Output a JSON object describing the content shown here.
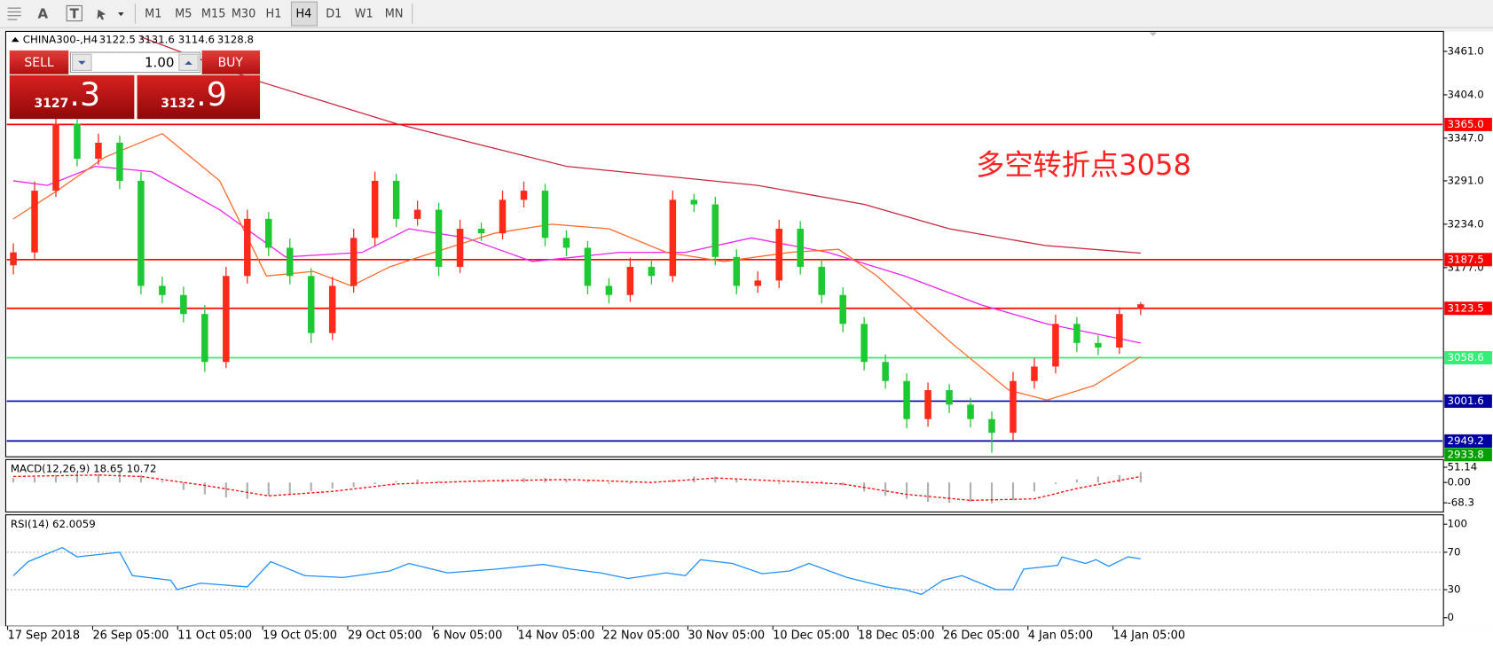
{
  "toolbar": {
    "text_tools": [
      "A",
      "T"
    ],
    "timeframes": [
      "M1",
      "M5",
      "M15",
      "M30",
      "H1",
      "H4",
      "D1",
      "W1",
      "MN"
    ],
    "active": "H4"
  },
  "trade_panel": {
    "sell_label": "SELL",
    "lot": "1.00",
    "buy_label": "BUY",
    "sell_price_main": "3127",
    "sell_price_frac": ".3",
    "buy_price_main": "3132",
    "buy_price_frac": ".9"
  },
  "chart_data": {
    "type": "candlestick",
    "title": "CHINA300-,H4",
    "up_color": "#ff2a1a",
    "down_color": "#1ec832",
    "open": [
      3180,
      3197,
      3278,
      3366,
      3320,
      3341,
      3291,
      3153,
      3141,
      3116,
      3053,
      3166,
      3241,
      3203,
      3166,
      3091,
      3153,
      3216,
      3291,
      3241,
      3253,
      3178,
      3228,
      3222,
      3266,
      3278,
      3216,
      3203,
      3153,
      3141,
      3178,
      3166,
      3266,
      3260,
      3191,
      3153,
      3160,
      3228,
      3178,
      3141,
      3103,
      3053,
      3028,
      2978,
      3016,
      2997,
      2978,
      2960,
      3028,
      3047,
      3103,
      3078,
      3072,
      3122.5
    ],
    "high": [
      3209,
      3290,
      3378,
      3372,
      3353,
      3350,
      3303,
      3165,
      3152,
      3128,
      3178,
      3253,
      3250,
      3215,
      3176,
      3165,
      3228,
      3303,
      3300,
      3265,
      3262,
      3240,
      3236,
      3278,
      3290,
      3287,
      3226,
      3212,
      3163,
      3190,
      3188,
      3278,
      3274,
      3270,
      3201,
      3172,
      3240,
      3238,
      3188,
      3151,
      3112,
      3063,
      3038,
      3026,
      3024,
      3006,
      2988,
      3040,
      3058,
      3115,
      3112,
      3088,
      3125,
      3131.6
    ],
    "low": [
      3168,
      3188,
      3270,
      3310,
      3312,
      3280,
      3142,
      3130,
      3105,
      3040,
      3045,
      3156,
      3192,
      3155,
      3078,
      3082,
      3144,
      3206,
      3230,
      3232,
      3166,
      3170,
      3212,
      3214,
      3256,
      3205,
      3192,
      3142,
      3130,
      3132,
      3155,
      3158,
      3250,
      3180,
      3142,
      3144,
      3150,
      3168,
      3130,
      3092,
      3042,
      3018,
      2966,
      2968,
      2986,
      2967,
      2933.8,
      2950,
      3018,
      3038,
      3066,
      3062,
      3064,
      3114.6
    ],
    "close": [
      3197,
      3278,
      3366,
      3320,
      3341,
      3291,
      3153,
      3141,
      3116,
      3053,
      3166,
      3241,
      3203,
      3166,
      3091,
      3153,
      3216,
      3291,
      3241,
      3253,
      3178,
      3228,
      3222,
      3266,
      3278,
      3216,
      3203,
      3153,
      3141,
      3178,
      3166,
      3266,
      3260,
      3191,
      3153,
      3160,
      3228,
      3178,
      3141,
      3103,
      3053,
      3028,
      2978,
      3016,
      2997,
      2978,
      2960,
      3028,
      3047,
      3103,
      3078,
      3072,
      3116,
      3128.8
    ],
    "ylim": [
      2928.5,
      3484.75
    ],
    "yticks": [
      {
        "value": 3461,
        "label": "3461.0"
      },
      {
        "value": 3404,
        "label": "3404.0"
      },
      {
        "value": 3347,
        "label": "3347.0"
      },
      {
        "value": 3291,
        "label": "3291.0"
      },
      {
        "value": 3234,
        "label": "3234.0"
      },
      {
        "value": 3177,
        "label": "3177.0"
      }
    ],
    "levels": [
      {
        "value": 3365,
        "label": "3365.0",
        "color": "#ff0000"
      },
      {
        "value": 3187.5,
        "label": "3187.5",
        "color": "#ff0000"
      },
      {
        "value": 3123.5,
        "label": "3123.5",
        "color": "#ff0000"
      },
      {
        "value": 3058.6,
        "label": "3058.6",
        "color": "#33ee77"
      },
      {
        "value": 3001.6,
        "label": "3001.6",
        "color": "#0000a0"
      },
      {
        "value": 2949.2,
        "label": "2949.2",
        "color": "#0000a0"
      }
    ],
    "price_markers": [
      {
        "value": 2933.8,
        "label": "2933.8",
        "color": "#00a000"
      }
    ],
    "annotation": "多空转折点3058",
    "moving_averages": [
      {
        "color": "#c8283c",
        "x": [
          6,
          11.5,
          18,
          26,
          35,
          40,
          44,
          48.5,
          53
        ],
        "values": [
          3480,
          3422,
          3366,
          3310,
          3285,
          3260,
          3228,
          3206,
          3196
        ]
      },
      {
        "color": "#ee22ee",
        "x": [
          0,
          1.6,
          3.85,
          6.5,
          9.7,
          12.8,
          16.4,
          18.6,
          21.3,
          24.4,
          28.5,
          31.6,
          34.7,
          38.3,
          41.9,
          45.5,
          48.6,
          53
        ],
        "values": [
          3291,
          3285,
          3310,
          3303,
          3253,
          3191,
          3197,
          3228,
          3216,
          3185,
          3197,
          3197,
          3216,
          3197,
          3166,
          3128,
          3103,
          3078
        ]
      },
      {
        "color": "#ff6a2a",
        "x": [
          0,
          2.06,
          4.3,
          7.0,
          9.7,
          11.9,
          14.1,
          15.9,
          17.7,
          19.1,
          22.6,
          25.3,
          28.0,
          30.7,
          33.4,
          36.5,
          38.8,
          40.6,
          44.1,
          46.8,
          48.6,
          50.8,
          53
        ],
        "values": [
          3241,
          3278,
          3322,
          3353,
          3291,
          3166,
          3172,
          3153,
          3178,
          3191,
          3222,
          3234,
          3228,
          3197,
          3185,
          3197,
          3201,
          3166,
          3078,
          3016,
          3003,
          3022,
          3060
        ]
      }
    ],
    "time_labels": [
      "17 Sep 2018",
      "26 Sep 05:00",
      "11 Oct 05:00",
      "19 Oct 05:00",
      "29 Oct 05:00",
      "6 Nov 05:00",
      "14 Nov 05:00",
      "22 Nov 05:00",
      "30 Nov 05:00",
      "10 Dec 05:00",
      "18 Dec 05:00",
      "26 Dec 05:00",
      "4 Jan 05:00",
      "14 Jan 05:00"
    ],
    "macd": {
      "title": "MACD(12,26,9) 18.65 10.72",
      "ylim": [
        -95.8,
        73.5
      ],
      "yticks": [
        51.14,
        {
          "value": 0,
          "label": "0.00"
        },
        -68.3
      ],
      "histogram": [
        15,
        18,
        25,
        30,
        28,
        35,
        25,
        5,
        -25,
        -40,
        -50,
        -55,
        -45,
        -40,
        -30,
        -20,
        -15,
        -5,
        5,
        10,
        5,
        0,
        5,
        10,
        15,
        15,
        10,
        5,
        -5,
        -5,
        0,
        10,
        20,
        20,
        10,
        0,
        -5,
        0,
        5,
        -10,
        -30,
        -45,
        -55,
        -65,
        -68,
        -65,
        -70,
        -60,
        -30,
        -5,
        10,
        20,
        25,
        35
      ],
      "signal": {
        "color": "#ff0000",
        "x": [
          0,
          4,
          6,
          9,
          12,
          15,
          18,
          22,
          26,
          30,
          33,
          36,
          39,
          42,
          45,
          48,
          50,
          53
        ],
        "values": [
          20,
          25,
          20,
          -10,
          -45,
          -30,
          -5,
          5,
          10,
          0,
          15,
          5,
          -5,
          -40,
          -60,
          -55,
          -20,
          20
        ]
      }
    },
    "rsi": {
      "title": "RSI(14) 62.0059",
      "ylim": [
        -8,
        109
      ],
      "yticks": [
        100,
        70,
        30,
        0
      ],
      "levels": [
        70,
        30
      ],
      "color": "#1e90ff",
      "x": [
        0,
        0.7,
        2.3,
        3.0,
        5.0,
        5.6,
        7.4,
        7.7,
        8.8,
        11.0,
        12.1,
        13.7,
        15.5,
        17.7,
        18.6,
        20.4,
        22.7,
        24.9,
        26.2,
        27.6,
        28.9,
        30.7,
        31.6,
        32.3,
        33.8,
        35.2,
        36.5,
        37.4,
        39.2,
        41.0,
        41.9,
        42.7,
        43.7,
        44.6,
        46.2,
        47.0,
        47.5,
        49.1,
        49.3,
        50.4,
        50.9,
        51.5,
        52.4,
        53
      ],
      "values": [
        45,
        60,
        75,
        65,
        70,
        45,
        40,
        30,
        37,
        33,
        60,
        45,
        43,
        50,
        58,
        48,
        52,
        57,
        52,
        48,
        42,
        48,
        45,
        62,
        58,
        47,
        50,
        58,
        43,
        33,
        30,
        25,
        40,
        45,
        30,
        30,
        52,
        56,
        65,
        58,
        62,
        55,
        65,
        63
      ]
    }
  }
}
